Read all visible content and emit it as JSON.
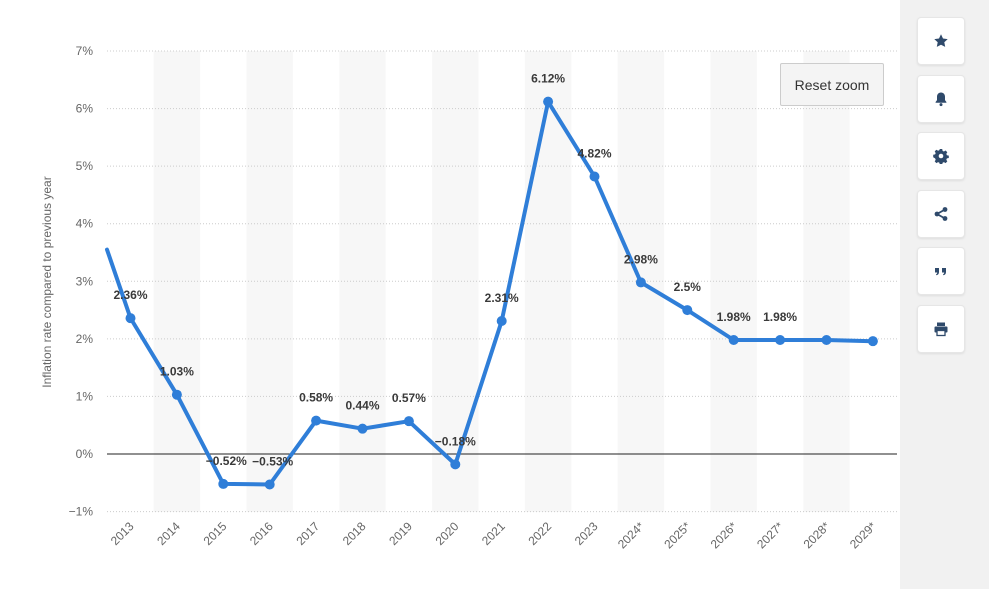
{
  "chart_data": {
    "type": "line",
    "title": "",
    "xlabel": "",
    "ylabel": "Inflation rate compared to previous year",
    "categories": [
      "2013",
      "2014",
      "2015",
      "2016",
      "2017",
      "2018",
      "2019",
      "2020",
      "2021",
      "2022",
      "2023",
      "2024*",
      "2025*",
      "2026*",
      "2027*",
      "2028*",
      "2029*"
    ],
    "series": [
      {
        "values": [
          2.36,
          1.03,
          -0.52,
          -0.53,
          0.58,
          0.44,
          0.57,
          -0.18,
          2.31,
          6.12,
          4.82,
          2.98,
          2.5,
          1.98,
          1.98,
          1.98,
          1.96
        ],
        "labels": [
          "2.36%",
          "1.03%",
          "-0.52%",
          "-0.53%",
          "0.58%",
          "0.44%",
          "0.57%",
          "-0.18%",
          "2.31%",
          "6.12%",
          "4.82%",
          "2.98%",
          "2.5%",
          "1.98%",
          "1.98%",
          "",
          ""
        ],
        "color": "#2f7ed8"
      }
    ],
    "leading_value": 3.55,
    "ylim": [
      -1,
      7
    ],
    "yticks": [
      -1,
      0,
      1,
      2,
      3,
      4,
      5,
      6,
      7
    ],
    "ytick_labels": [
      "-1%",
      "0%",
      "1%",
      "2%",
      "3%",
      "4%",
      "5%",
      "6%",
      "7%"
    ],
    "grid": true,
    "legend": "none"
  },
  "reset_zoom": {
    "label": "Reset zoom"
  },
  "toolbar": {
    "items": [
      {
        "icon": "star-icon",
        "name": "favorite"
      },
      {
        "icon": "bell-icon",
        "name": "notification"
      },
      {
        "icon": "gear-icon",
        "name": "settings"
      },
      {
        "icon": "share-icon",
        "name": "share"
      },
      {
        "icon": "quote-icon",
        "name": "cite"
      },
      {
        "icon": "print-icon",
        "name": "print"
      }
    ]
  }
}
